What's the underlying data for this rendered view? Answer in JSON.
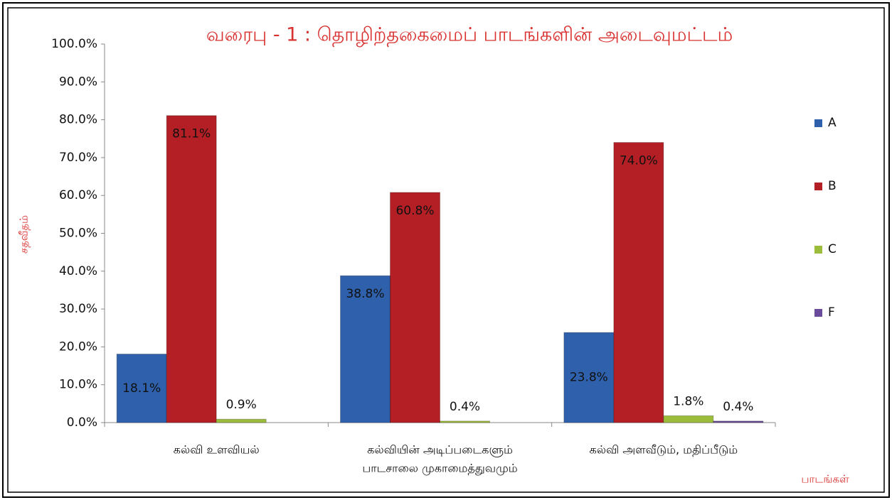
{
  "chart_data": {
    "type": "bar",
    "title": "வரைபு - 1 : தொழிற்தகைமைப் பாடங்களின் அடைவுமட்டம்",
    "y_label": "சதவீதம்",
    "x_label": "பாடங்கள்",
    "categories": [
      [
        "கல்வி உளவியல்"
      ],
      [
        "கல்வியின் அடிப்படைகளும்",
        "பாடசாலை முகாமைத்துவமும்"
      ],
      [
        "கல்வி அளவீடும், மதிப்பீடும்"
      ]
    ],
    "series": [
      {
        "name": "A",
        "color": "#2f60ab",
        "values": [
          18.1,
          38.8,
          23.8
        ],
        "value_labels": [
          "18.1%",
          "38.8%",
          "23.8%"
        ]
      },
      {
        "name": "B",
        "color": "#b31f24",
        "values": [
          81.1,
          60.8,
          74.0
        ],
        "value_labels": [
          "81.1%",
          "60.8%",
          "74.0%"
        ]
      },
      {
        "name": "C",
        "color": "#9cbd3c",
        "values": [
          0.9,
          0.4,
          1.8
        ],
        "value_labels": [
          "0.9%",
          "0.4%",
          "1.8%"
        ]
      },
      {
        "name": "F",
        "color": "#6b4c9c",
        "values": [
          null,
          null,
          0.4
        ],
        "value_labels": [
          null,
          null,
          "0.4%"
        ]
      }
    ],
    "ylim": [
      0,
      100
    ],
    "yticks": [
      {
        "value": 0,
        "label": "0.0%"
      },
      {
        "value": 10,
        "label": "10.0%"
      },
      {
        "value": 20,
        "label": "20.0%"
      },
      {
        "value": 30,
        "label": "30.0%"
      },
      {
        "value": 40,
        "label": "40.0%"
      },
      {
        "value": 50,
        "label": "50.0%"
      },
      {
        "value": 60,
        "label": "60.0%"
      },
      {
        "value": 70,
        "label": "70.0%"
      },
      {
        "value": 80,
        "label": "80.0%"
      },
      {
        "value": 90,
        "label": "90.0%"
      },
      {
        "value": 100,
        "label": "100.0%"
      }
    ],
    "grid": false,
    "legend": "right"
  }
}
